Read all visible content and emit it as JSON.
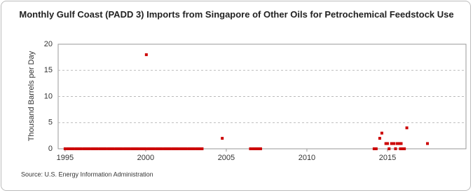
{
  "chart_data": {
    "type": "scatter",
    "title": "Monthly Gulf Coast (PADD 3) Imports from Singapore of Other Oils for Petrochemical Feedstock Use",
    "y_label": "Thousand Barrels per Day",
    "source": "Source: U.S. Energy Information Administration",
    "xlim": [
      1994.57,
      2019.87
    ],
    "xticks": [
      1995,
      2000,
      2005,
      2010,
      2015
    ],
    "ylim": [
      0,
      20
    ],
    "yticks": [
      0,
      5,
      10,
      15,
      20
    ],
    "grid": true,
    "series": [
      {
        "color": "#cc0000",
        "x": [
          1995,
          1995.17,
          1995.33,
          1995.5,
          1995.67,
          1995.83,
          1996,
          1996.17,
          1996.33,
          1996.5,
          1996.67,
          1996.83,
          1997,
          1997.17,
          1997.33,
          1997.5,
          1997.67,
          1997.83,
          1998,
          1998.17,
          1998.33,
          1998.5,
          1998.67,
          1998.83,
          1999,
          1999.17,
          1999.33,
          1999.5,
          1999.67,
          1999.83,
          2000,
          2000.17,
          2000.33,
          2000.5,
          2000.67,
          2000.83,
          2001,
          2001.17,
          2001.33,
          2001.5,
          2001.67,
          2001.83,
          2002,
          2002.17,
          2002.33,
          2002.5,
          2002.67,
          2002.83,
          2003,
          2003.17,
          2003.33,
          2003.5,
          2000.04,
          2004.75,
          2006.5,
          2006.67,
          2006.83,
          2007,
          2007.13,
          2014.17,
          2014.3,
          2014.52,
          2014.65,
          2014.9,
          2015.0,
          2015.1,
          2015.25,
          2015.4,
          2015.5,
          2015.6,
          2015.75,
          2015.85,
          2015.8,
          2015.95,
          2016.05,
          2016.2,
          2017.48
        ],
        "values": [
          0,
          0,
          0,
          0,
          0,
          0,
          0,
          0,
          0,
          0,
          0,
          0,
          0,
          0,
          0,
          0,
          0,
          0,
          0,
          0,
          0,
          0,
          0,
          0,
          0,
          0,
          0,
          0,
          0,
          0,
          0,
          0,
          0,
          0,
          0,
          0,
          0,
          0,
          0,
          0,
          0,
          0,
          0,
          0,
          0,
          0,
          0,
          0,
          0,
          0,
          0,
          0,
          18,
          2,
          0,
          0,
          0,
          0,
          0,
          0,
          0,
          2,
          3,
          1,
          1,
          0,
          1,
          1,
          0,
          1,
          1,
          1,
          0,
          0,
          0,
          4,
          1
        ]
      }
    ]
  }
}
